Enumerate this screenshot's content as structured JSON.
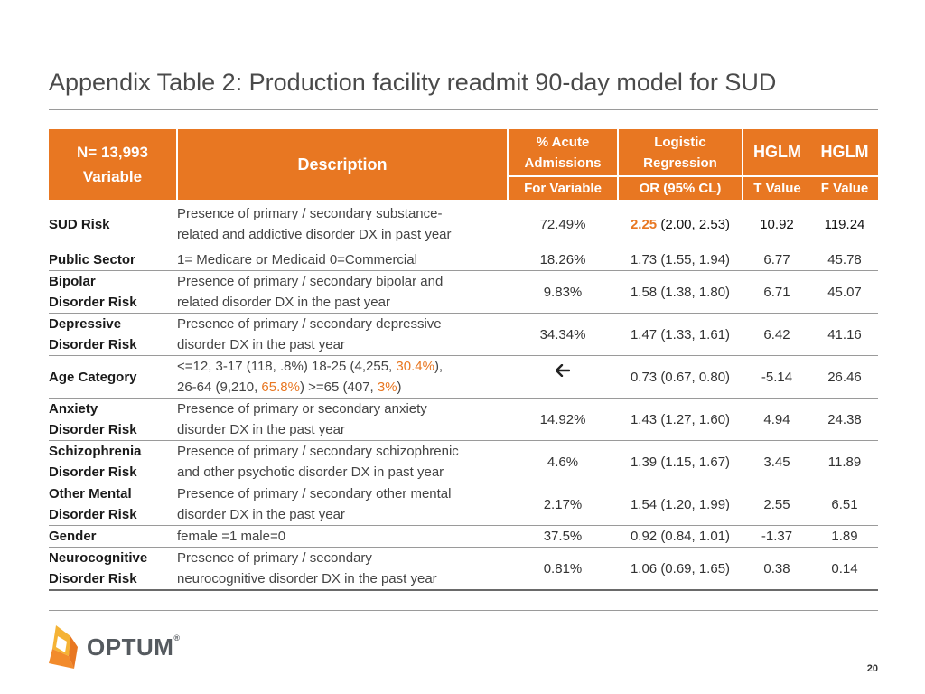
{
  "title": "Appendix Table 2: Production facility readmit 90-day model for SUD",
  "header": {
    "n_label": "N= 13,993",
    "variable_label": "Variable",
    "description": "Description",
    "acute_line1": "% Acute",
    "acute_line2": "Admissions",
    "logistic_line1": "Logistic",
    "logistic_line2": "Regression",
    "hglm1": "HGLM",
    "hglm2": "HGLM",
    "sub_for_variable": "For Variable",
    "sub_or": "OR  (95% CL)",
    "sub_t": "T Value",
    "sub_f": "F Value"
  },
  "rows": [
    {
      "variable": "SUD Risk",
      "desc1": "Presence of primary / secondary substance-",
      "desc2": "related and addictive disorder DX in past year",
      "acute": "72.49%",
      "or_main": "2.25",
      "or_ci": " (2.00, 2.53)",
      "t": "10.92",
      "f": "119.24"
    },
    {
      "variable": "Public Sector",
      "desc": "1= Medicare or Medicaid 0=Commercial",
      "acute": "18.26%",
      "or": "1.73 (1.55, 1.94)",
      "t": "6.77",
      "f": "45.78"
    },
    {
      "variable1": "Bipolar",
      "variable2": "Disorder Risk",
      "desc1": "Presence of primary / secondary bipolar and",
      "desc2": "related disorder DX in the past year",
      "acute": "9.83%",
      "or": "1.58 (1.38, 1.80)",
      "t": "6.71",
      "f": "45.07"
    },
    {
      "variable1": "Depressive",
      "variable2": "Disorder Risk",
      "desc1": "Presence of primary / secondary depressive",
      "desc2": "disorder DX in the past year",
      "acute": "34.34%",
      "or": "1.47 (1.33, 1.61)",
      "t": "6.42",
      "f": "41.16"
    },
    {
      "variable": "Age Category",
      "desc_a": "<=12,   3-17 (118, .8%)  18-25 (4,255, ",
      "desc_a_hl": "30.4%",
      "desc_a_end": "),",
      "desc_b": "26-64 (9,210, ",
      "desc_b_hl": "65.8%",
      "desc_b_mid": ")    >=65 (407, ",
      "desc_b_hl2": "3%",
      "desc_b_end": ")",
      "acute_icon": "arrow-left-icon",
      "or": "0.73 (0.67, 0.80)",
      "t": "-5.14",
      "f": "26.46"
    },
    {
      "variable1": "Anxiety",
      "variable2": "Disorder Risk",
      "desc1": "Presence of primary or secondary anxiety",
      "desc2": "disorder DX in the past year",
      "acute": "14.92%",
      "or": "1.43 (1.27, 1.60)",
      "t": "4.94",
      "f": "24.38"
    },
    {
      "variable1": "Schizophrenia",
      "variable2": "Disorder Risk",
      "desc1": "Presence of primary / secondary schizophrenic",
      "desc2": "and other psychotic disorder DX in past year",
      "acute": "4.6%",
      "or": "1.39 (1.15, 1.67)",
      "t": "3.45",
      "f": "11.89"
    },
    {
      "variable1": "Other Mental",
      "variable2": "Disorder Risk",
      "desc1": "Presence of primary / secondary other mental",
      "desc2": "disorder DX in the past year",
      "acute": "2.17%",
      "or": "1.54 (1.20, 1.99)",
      "t": "2.55",
      "f": "6.51"
    },
    {
      "variable": "Gender",
      "desc": "female =1 male=0",
      "acute": "37.5%",
      "or": "0.92 (0.84, 1.01)",
      "t": "-1.37",
      "f": "1.89"
    },
    {
      "variable1": "Neurocognitive",
      "variable2": "Disorder Risk",
      "desc1": "Presence of primary / secondary",
      "desc2": "neurocognitive disorder DX in the past year",
      "acute": "0.81%",
      "or": "1.06 (0.69, 1.65)",
      "t": "0.38",
      "f": "0.14"
    }
  ],
  "colors": {
    "accent": "#E87722",
    "logo_orange": "#F28B2C",
    "logo_yellow": "#F5B335"
  },
  "logo": {
    "text": "OPTUM",
    "reg": "®"
  },
  "page_number": "20"
}
